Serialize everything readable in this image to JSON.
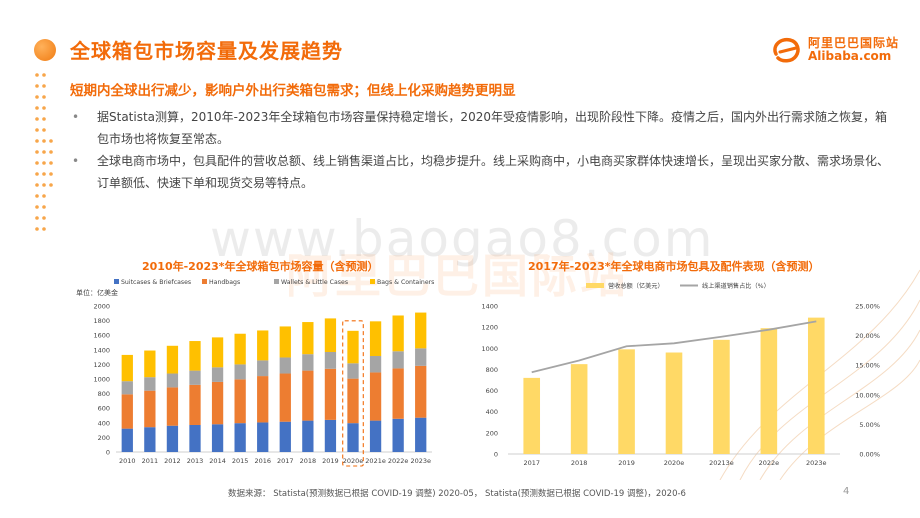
{
  "header": {
    "title": "全球箱包市场容量及发展趋势",
    "logo_cn": "阿里巴巴国际站",
    "logo_en": "Alibaba.com"
  },
  "subheading": "短期内全球出行减少，影响户外出行类箱包需求；但线上化采购趋势更明显",
  "bullets": [
    {
      "line1": "据Statista测算，2010年-2023年全球箱包市场容量保持稳定增长，2020年受疫情影响，出现阶段性下降。疫情之后，国内外出行需求随之恢复，箱",
      "line2": "包市场也将恢复至常态。"
    },
    {
      "line1": "全球电商市场中，包具配件的营收总额、线上销售渠道占比，均稳步提升。线上采购商中，小电商买家群体快速增长，呈现出买家分散、需求场景化、",
      "line2": "订单额低、快速下单和现货交易等特点。"
    }
  ],
  "watermark": "www.baogao8.com",
  "watermark_logo": "阿里巴巴国际站",
  "colors": {
    "accent": "#f26b0a",
    "suitcases": "#4472c4",
    "handbags": "#ed7d31",
    "wallets": "#a5a5a5",
    "bags": "#ffc000",
    "revenue_bar": "#ffd966",
    "online_line": "#a5a5a5"
  },
  "chart_data": [
    {
      "type": "bar",
      "stacked": true,
      "title": "2010年-2023*年全球箱包市场容量（含预测）",
      "unit_label": "单位：亿美金",
      "categories": [
        "2010",
        "2011",
        "2012",
        "2013",
        "2014",
        "2015",
        "2016",
        "2017",
        "2018",
        "2019",
        "2020e",
        "2021e",
        "2022e",
        "2023e"
      ],
      "series": [
        {
          "name": "Suitcases & Briefcases",
          "values": [
            320,
            340,
            360,
            370,
            380,
            395,
            405,
            415,
            430,
            440,
            395,
            430,
            455,
            470
          ]
        },
        {
          "name": "Handbags",
          "values": [
            470,
            500,
            525,
            550,
            580,
            600,
            635,
            660,
            685,
            700,
            610,
            660,
            690,
            710
          ]
        },
        {
          "name": "Wallets & Little Cases",
          "values": [
            180,
            185,
            190,
            195,
            200,
            205,
            215,
            220,
            225,
            230,
            210,
            225,
            235,
            240
          ]
        },
        {
          "name": "Bags & Containers",
          "values": [
            360,
            365,
            380,
            405,
            410,
            420,
            410,
            425,
            440,
            460,
            445,
            475,
            490,
            490
          ]
        }
      ],
      "ylim": [
        0,
        2000
      ],
      "yticks": [
        0,
        200,
        400,
        600,
        800,
        1000,
        1200,
        1400,
        1600,
        1800,
        2000
      ],
      "highlight_category": "2020e",
      "legend_position": "top"
    },
    {
      "type": "bar",
      "title": "2017年-2023*年全球电商市场包具及配件表现（含预测）",
      "categories": [
        "2017",
        "2018",
        "2019",
        "2020e",
        "20213e",
        "2022e",
        "2023e"
      ],
      "series": [
        {
          "name": "营收总额（亿美元）",
          "type": "bar",
          "axis": "left",
          "values": [
            720,
            850,
            990,
            960,
            1080,
            1190,
            1290
          ]
        },
        {
          "name": "线上渠道销售占比（%）",
          "type": "line",
          "axis": "right",
          "values": [
            13.8,
            15.8,
            18.2,
            18.7,
            19.8,
            21.0,
            22.4
          ]
        }
      ],
      "ylim_left": [
        0,
        1400
      ],
      "yticks_left": [
        0,
        200,
        400,
        600,
        800,
        1000,
        1200,
        1400
      ],
      "ylim_right": [
        0,
        25
      ],
      "yticks_right": [
        "0.00%",
        "5.00%",
        "10.00%",
        "15.00%",
        "20.00%",
        "25.00%"
      ],
      "legend_position": "top"
    }
  ],
  "footer": {
    "source": "数据来源： Statista(预测数据已根据 COVID-19 调整) 2020-05， Statista(预测数据已根据 COVID-19 调整)，2020-6",
    "page_number": "4"
  }
}
